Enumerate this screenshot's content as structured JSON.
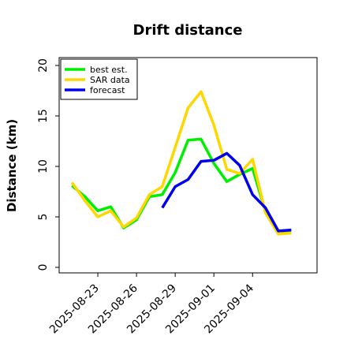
{
  "chart_data": {
    "type": "line",
    "title": "Drift distance",
    "xlabel": "",
    "ylabel": "Distance (km)",
    "ylim": [
      0,
      20
    ],
    "yticks": [
      "0",
      "5",
      "10",
      "15",
      "20"
    ],
    "xlim": [
      "2025-08-20",
      "2025-09-09"
    ],
    "xticks": [
      "2025-08-23",
      "2025-08-26",
      "2025-08-29",
      "2025-09-01",
      "2025-09-04"
    ],
    "grid": false,
    "legend": "top-left",
    "series": [
      {
        "name": "best est.",
        "color": "#00ee00",
        "x": [
          "2025-08-21",
          "2025-08-22",
          "2025-08-23",
          "2025-08-24",
          "2025-08-25",
          "2025-08-26",
          "2025-08-27",
          "2025-08-28",
          "2025-08-29",
          "2025-08-30",
          "2025-08-31",
          "2025-09-01",
          "2025-09-02",
          "2025-09-03",
          "2025-09-04",
          "2025-09-05",
          "2025-09-06",
          "2025-09-07"
        ],
        "values": [
          8.1,
          7.0,
          5.6,
          6.0,
          3.9,
          4.7,
          7.0,
          7.2,
          9.4,
          12.6,
          12.7,
          10.3,
          8.5,
          9.2,
          9.8,
          5.5,
          3.6,
          3.6
        ]
      },
      {
        "name": "SAR data",
        "color": "#ffd700",
        "x": [
          "2025-08-21",
          "2025-08-22",
          "2025-08-23",
          "2025-08-24",
          "2025-08-25",
          "2025-08-26",
          "2025-08-27",
          "2025-08-28",
          "2025-08-29",
          "2025-08-30",
          "2025-08-31",
          "2025-09-01",
          "2025-09-02",
          "2025-09-03",
          "2025-09-04",
          "2025-09-05",
          "2025-09-06",
          "2025-09-07"
        ],
        "values": [
          8.4,
          6.6,
          5.0,
          5.6,
          4.0,
          4.9,
          7.2,
          8.0,
          11.9,
          15.8,
          17.4,
          14.1,
          9.7,
          9.3,
          10.7,
          5.4,
          3.3,
          3.4
        ]
      },
      {
        "name": "forecast",
        "color": "#0000ee",
        "x": [
          "2025-08-28",
          "2025-08-29",
          "2025-08-30",
          "2025-08-31",
          "2025-09-01",
          "2025-09-02",
          "2025-09-03",
          "2025-09-04",
          "2025-09-05",
          "2025-09-06",
          "2025-09-07"
        ],
        "values": [
          5.9,
          8.0,
          8.7,
          10.5,
          10.6,
          11.3,
          10.1,
          7.2,
          5.9,
          3.6,
          3.7
        ]
      }
    ]
  }
}
